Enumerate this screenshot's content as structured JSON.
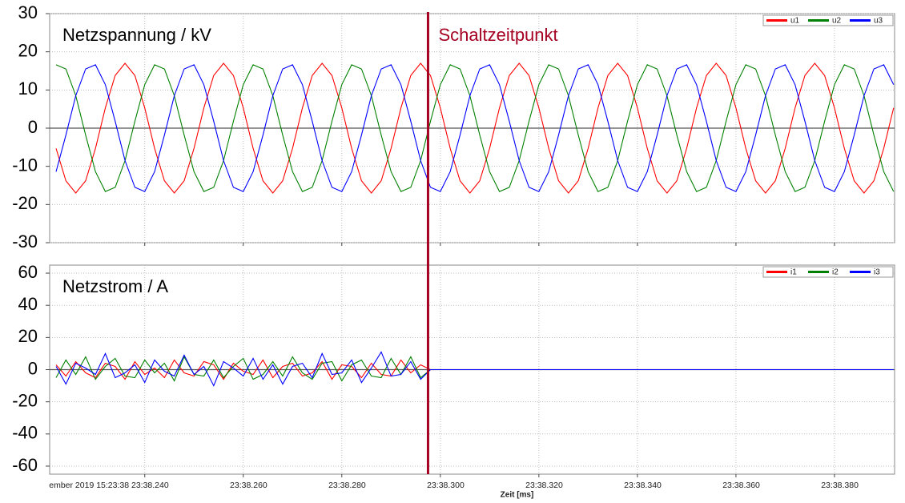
{
  "chart_data": [
    {
      "type": "line",
      "annotation": "Netzspannung / kV",
      "x": [
        38.222,
        38.224,
        38.226,
        38.228,
        38.23,
        38.232,
        38.234,
        38.236,
        38.238,
        38.24,
        38.242,
        38.244,
        38.246,
        38.248,
        38.25,
        38.252,
        38.254,
        38.256,
        38.258,
        38.26,
        38.262,
        38.264,
        38.266,
        38.268,
        38.27,
        38.272,
        38.274,
        38.276,
        38.278,
        38.28,
        38.282,
        38.284,
        38.286,
        38.288,
        38.29,
        38.292,
        38.294,
        38.296,
        38.298,
        38.3,
        38.302,
        38.304,
        38.306,
        38.308,
        38.31,
        38.312,
        38.314,
        38.316,
        38.318,
        38.32,
        38.322,
        38.324,
        38.326,
        38.328,
        38.33,
        38.332,
        38.334,
        38.336,
        38.338,
        38.34,
        38.342,
        38.344,
        38.346,
        38.348,
        38.35,
        38.352,
        38.354,
        38.356,
        38.358,
        38.36,
        38.362,
        38.364,
        38.366,
        38.368,
        38.37,
        38.372,
        38.374,
        38.376,
        38.378,
        38.38,
        38.382,
        38.384,
        38.386,
        38.388,
        38.39,
        38.392
      ],
      "series": [
        {
          "name": "u1",
          "color": "#ff0000",
          "values": [
            -5.3,
            -13.8,
            -17,
            -13.8,
            -5.3,
            5.3,
            13.8,
            17,
            13.8,
            5.3,
            -5.3,
            -13.8,
            -17,
            -13.8,
            -5.3,
            5.3,
            13.8,
            17,
            13.8,
            5.3,
            -5.3,
            -13.8,
            -17,
            -13.8,
            -5.3,
            5.3,
            13.8,
            17,
            13.8,
            5.3,
            -5.3,
            -13.8,
            -17,
            -13.8,
            -5.3,
            5.3,
            13.8,
            17,
            13.8,
            5.3,
            -5.3,
            -13.8,
            -17,
            -13.8,
            -5.3,
            5.3,
            13.8,
            17,
            13.8,
            5.3,
            -5.3,
            -13.8,
            -17,
            -13.8,
            -5.3,
            5.3,
            13.8,
            17,
            13.8,
            5.3,
            -5.3,
            -13.8,
            -17,
            -13.8,
            -5.3,
            5.3,
            13.8,
            17,
            13.8,
            5.3,
            -5.3,
            -13.8,
            -17,
            -13.8,
            -5.3,
            5.3,
            13.8,
            17,
            13.8,
            5.3,
            -5.3,
            -13.8,
            -17,
            -13.8,
            -5.3,
            5.3
          ]
        },
        {
          "name": "u2",
          "color": "#008000",
          "values": [
            16.6,
            15.5,
            8.5,
            -1.8,
            -11.4,
            -16.6,
            -15.5,
            -8.5,
            1.8,
            11.4,
            16.6,
            15.5,
            8.5,
            -1.8,
            -11.4,
            -16.6,
            -15.5,
            -8.5,
            1.8,
            11.4,
            16.6,
            15.5,
            8.5,
            -1.8,
            -11.4,
            -16.6,
            -15.5,
            -8.5,
            1.8,
            11.4,
            16.6,
            15.5,
            8.5,
            -1.8,
            -11.4,
            -16.6,
            -15.5,
            -8.5,
            1.8,
            11.4,
            16.6,
            15.5,
            8.5,
            -1.8,
            -11.4,
            -16.6,
            -15.5,
            -8.5,
            1.8,
            11.4,
            16.6,
            15.5,
            8.5,
            -1.8,
            -11.4,
            -16.6,
            -15.5,
            -8.5,
            1.8,
            11.4,
            16.6,
            15.5,
            8.5,
            -1.8,
            -11.4,
            -16.6,
            -15.5,
            -8.5,
            1.8,
            11.4,
            16.6,
            15.5,
            8.5,
            -1.8,
            -11.4,
            -16.6,
            -15.5,
            -8.5,
            1.8,
            11.4,
            16.6,
            15.5,
            8.5,
            -1.8,
            -11.4,
            -16.6
          ]
        },
        {
          "name": "u3",
          "color": "#0000ff",
          "values": [
            -11.4,
            -1.8,
            8.5,
            15.5,
            16.6,
            11.4,
            1.8,
            -8.5,
            -15.5,
            -16.6,
            -11.4,
            -1.8,
            8.5,
            15.5,
            16.6,
            11.4,
            1.8,
            -8.5,
            -15.5,
            -16.6,
            -11.4,
            -1.8,
            8.5,
            15.5,
            16.6,
            11.4,
            1.8,
            -8.5,
            -15.5,
            -16.6,
            -11.4,
            -1.8,
            8.5,
            15.5,
            16.6,
            11.4,
            1.8,
            -8.5,
            -15.5,
            -16.6,
            -11.4,
            -1.8,
            8.5,
            15.5,
            16.6,
            11.4,
            1.8,
            -8.5,
            -15.5,
            -16.6,
            -11.4,
            -1.8,
            8.5,
            15.5,
            16.6,
            11.4,
            1.8,
            -8.5,
            -15.5,
            -16.6,
            -11.4,
            -1.8,
            8.5,
            15.5,
            16.6,
            11.4,
            1.8,
            -8.5,
            -15.5,
            -16.6,
            -11.4,
            -1.8,
            8.5,
            15.5,
            16.6,
            11.4,
            1.8,
            -8.5,
            -15.5,
            -16.6,
            -11.4,
            -1.8,
            8.5,
            15.5,
            16.6,
            11.4
          ]
        }
      ],
      "xlim": [
        38.2207,
        38.3922
      ],
      "xticks": [
        38.24,
        38.26,
        38.28,
        38.3,
        38.32,
        38.34,
        38.36,
        38.38
      ],
      "ylim": [
        -30,
        30
      ],
      "yticks": [
        -30,
        -20,
        -10,
        0,
        10,
        20,
        30
      ],
      "grid": true,
      "legend": "upper right"
    },
    {
      "type": "line",
      "annotation": "Netzstrom / A",
      "xlabel": "Zeit [ms]",
      "x": [
        38.222,
        38.224,
        38.226,
        38.228,
        38.23,
        38.232,
        38.234,
        38.236,
        38.238,
        38.24,
        38.242,
        38.244,
        38.246,
        38.248,
        38.25,
        38.252,
        38.254,
        38.256,
        38.258,
        38.26,
        38.262,
        38.264,
        38.266,
        38.268,
        38.27,
        38.272,
        38.274,
        38.276,
        38.278,
        38.28,
        38.282,
        38.284,
        38.286,
        38.288,
        38.29,
        38.292,
        38.294,
        38.296,
        38.298,
        38.3,
        38.302,
        38.304,
        38.306,
        38.308,
        38.31,
        38.312,
        38.314,
        38.316,
        38.318,
        38.32,
        38.322,
        38.324,
        38.326,
        38.328,
        38.33,
        38.332,
        38.334,
        38.336,
        38.338,
        38.34,
        38.342,
        38.344,
        38.346,
        38.348,
        38.35,
        38.352,
        38.354,
        38.356,
        38.358,
        38.36,
        38.362,
        38.364,
        38.366,
        38.368,
        38.37,
        38.372,
        38.374,
        38.376,
        38.378,
        38.38,
        38.382,
        38.384,
        38.386,
        38.388,
        38.39,
        38.392
      ],
      "series": [
        {
          "name": "i1",
          "color": "#ff0000",
          "values": [
            3,
            -4,
            5,
            -2,
            -5,
            4,
            2,
            -6,
            5,
            -3,
            1,
            -5,
            6,
            -2,
            -4,
            5,
            3,
            -6,
            4,
            -1,
            -3,
            6,
            -5,
            2,
            4,
            -4,
            -2,
            5,
            -6,
            3,
            2,
            -5,
            4,
            -3,
            -4,
            6,
            -2,
            3,
            0,
            0,
            0,
            0,
            0,
            0,
            0,
            0,
            0,
            0,
            0,
            0,
            0,
            0,
            0,
            0,
            0,
            0,
            0,
            0,
            0,
            0,
            0,
            0,
            0,
            0,
            0,
            0,
            0,
            0,
            0,
            0,
            0,
            0,
            0,
            0,
            0,
            0,
            0,
            0,
            0,
            0,
            0,
            0,
            0,
            0,
            0,
            0
          ]
        },
        {
          "name": "i2",
          "color": "#008000",
          "values": [
            -5,
            6,
            -3,
            8,
            -6,
            2,
            7,
            -4,
            -5,
            6,
            -2,
            4,
            -7,
            8,
            -3,
            -4,
            6,
            -5,
            2,
            7,
            -6,
            -3,
            5,
            -4,
            8,
            -2,
            -6,
            4,
            5,
            -7,
            3,
            6,
            -4,
            -5,
            7,
            -3,
            8,
            -5,
            0,
            0,
            0,
            0,
            0,
            0,
            0,
            0,
            0,
            0,
            0,
            0,
            0,
            0,
            0,
            0,
            0,
            0,
            0,
            0,
            0,
            0,
            0,
            0,
            0,
            0,
            0,
            0,
            0,
            0,
            0,
            0,
            0,
            0,
            0,
            0,
            0,
            0,
            0,
            0,
            0,
            0,
            0,
            0,
            0,
            0,
            0,
            0
          ]
        },
        {
          "name": "i3",
          "color": "#0000ff",
          "values": [
            2,
            -9,
            4,
            1,
            -3,
            10,
            -5,
            -2,
            3,
            -8,
            6,
            -1,
            -4,
            9,
            -3,
            2,
            -10,
            5,
            1,
            -4,
            7,
            -6,
            3,
            -9,
            2,
            4,
            -5,
            10,
            -3,
            -2,
            6,
            -8,
            1,
            11,
            -4,
            -3,
            5,
            -6,
            0,
            0,
            0,
            0,
            0,
            0,
            0,
            0,
            0,
            0,
            0,
            0,
            0,
            0,
            0,
            0,
            0,
            0,
            0,
            0,
            0,
            0,
            0,
            0,
            0,
            0,
            0,
            0,
            0,
            0,
            0,
            0,
            0,
            0,
            0,
            0,
            0,
            0,
            0,
            0,
            0,
            0,
            0,
            0,
            0,
            0,
            0,
            0
          ]
        }
      ],
      "xlim": [
        38.2207,
        38.3922
      ],
      "xticks": [
        {
          "value": 38.24,
          "label": "ember 2019 15:23:38 23:38.240"
        },
        {
          "value": 38.26,
          "label": "23:38.260"
        },
        {
          "value": 38.28,
          "label": "23:38.280"
        },
        {
          "value": 38.3,
          "label": "23:38.300"
        },
        {
          "value": 38.32,
          "label": "23:38.320"
        },
        {
          "value": 38.34,
          "label": "23:38.340"
        },
        {
          "value": 38.36,
          "label": "23:38.360"
        },
        {
          "value": 38.38,
          "label": "23:38.380"
        }
      ],
      "ylim": [
        -65,
        65
      ],
      "yticks": [
        -60,
        -40,
        -20,
        0,
        20,
        40,
        60
      ],
      "grid": true,
      "legend": "upper right"
    }
  ],
  "switch_line": {
    "x": 38.2975,
    "label": "Schaltzeitpunkt",
    "color": "#a50021"
  }
}
